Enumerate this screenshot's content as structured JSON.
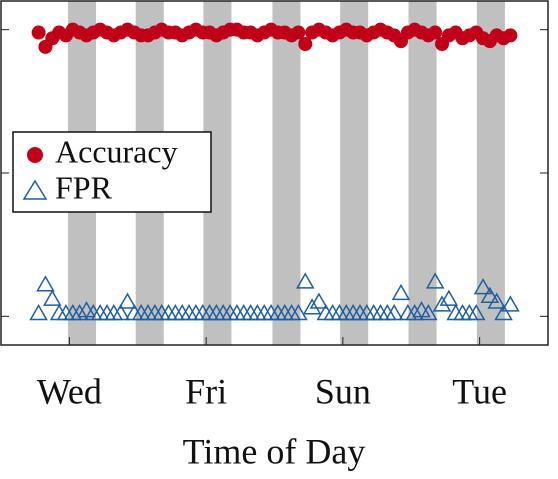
{
  "chart_data": {
    "type": "scatter",
    "xlabel": "Time of Day",
    "xlim": [
      0,
      8
    ],
    "xticks": [
      {
        "value": 1,
        "label": "Wed"
      },
      {
        "value": 3,
        "label": "Fri"
      },
      {
        "value": 5,
        "label": "Sun"
      },
      {
        "value": 7,
        "label": "Tue"
      }
    ],
    "ylim": [
      -0.1,
      1.1
    ],
    "yticks": [
      0,
      0.5,
      1
    ],
    "bands": [
      [
        0.98,
        1.39
      ],
      [
        1.97,
        2.38
      ],
      [
        2.96,
        3.37
      ],
      [
        3.97,
        4.38
      ],
      [
        4.96,
        5.37
      ],
      [
        5.96,
        6.37
      ],
      [
        6.96,
        7.37
      ]
    ],
    "band_color": "#c0c0c0",
    "legend": "center-left",
    "x": [
      0.55,
      0.65,
      0.75,
      0.85,
      0.95,
      1.05,
      1.15,
      1.25,
      1.35,
      1.45,
      1.55,
      1.65,
      1.75,
      1.85,
      1.95,
      2.05,
      2.15,
      2.25,
      2.35,
      2.45,
      2.55,
      2.65,
      2.75,
      2.85,
      2.95,
      3.05,
      3.15,
      3.25,
      3.35,
      3.45,
      3.55,
      3.65,
      3.75,
      3.85,
      3.95,
      4.05,
      4.15,
      4.25,
      4.35,
      4.45,
      4.55,
      4.65,
      4.75,
      4.85,
      4.95,
      5.05,
      5.15,
      5.25,
      5.35,
      5.45,
      5.55,
      5.65,
      5.75,
      5.85,
      5.95,
      6.05,
      6.15,
      6.25,
      6.35,
      6.45,
      6.55,
      6.65,
      6.75,
      6.85,
      6.95,
      7.05,
      7.15,
      7.25,
      7.35,
      7.45
    ],
    "series": [
      {
        "name": "Accuracy",
        "color": "#c00018",
        "marker": "circle",
        "values": [
          0.99,
          0.94,
          0.97,
          0.99,
          0.98,
          1.0,
          0.99,
          0.98,
          0.99,
          1.0,
          0.99,
          0.98,
          0.99,
          1.0,
          0.99,
          0.98,
          0.98,
          0.99,
          1.0,
          0.99,
          0.99,
          0.98,
          0.99,
          1.0,
          0.99,
          0.99,
          0.98,
          0.99,
          1.0,
          1.0,
          0.99,
          0.99,
          0.98,
          0.99,
          1.0,
          0.99,
          0.99,
          0.98,
          0.99,
          0.95,
          0.99,
          1.0,
          0.99,
          0.98,
          0.99,
          1.0,
          0.99,
          0.99,
          0.98,
          0.99,
          1.0,
          0.99,
          0.98,
          0.96,
          0.99,
          1.0,
          0.99,
          0.98,
          0.99,
          0.95,
          0.98,
          0.99,
          0.97,
          0.98,
          0.99,
          0.97,
          0.96,
          0.98,
          0.97,
          0.98
        ]
      },
      {
        "name": "FPR",
        "color": "#1f5fa0",
        "marker": "triangle",
        "values": [
          0.01,
          0.11,
          0.06,
          0.01,
          0.01,
          0.01,
          0.01,
          0.02,
          0.01,
          0.01,
          0.01,
          0.01,
          0.01,
          0.05,
          0.01,
          0.01,
          0.01,
          0.01,
          0.01,
          0.01,
          0.01,
          0.01,
          0.01,
          0.01,
          0.01,
          0.01,
          0.01,
          0.01,
          0.01,
          0.01,
          0.01,
          0.01,
          0.01,
          0.01,
          0.01,
          0.01,
          0.01,
          0.01,
          0.01,
          0.12,
          0.03,
          0.05,
          0.01,
          0.01,
          0.01,
          0.01,
          0.01,
          0.01,
          0.01,
          0.01,
          0.01,
          0.01,
          0.01,
          0.08,
          0.01,
          0.01,
          0.02,
          0.01,
          0.12,
          0.04,
          0.06,
          0.01,
          0.01,
          0.01,
          0.01,
          0.1,
          0.07,
          0.05,
          0.01,
          0.04
        ]
      }
    ]
  }
}
